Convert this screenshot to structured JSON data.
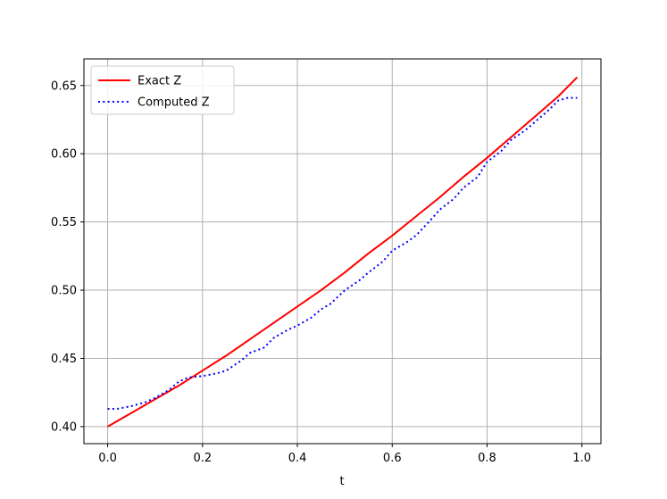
{
  "chart_data": {
    "type": "line",
    "title": "",
    "xlabel": "t",
    "ylabel": "",
    "xlim": [
      -0.05,
      1.04
    ],
    "ylim": [
      0.3875,
      0.6695
    ],
    "xticks": [
      "0.0",
      "0.2",
      "0.4",
      "0.6",
      "0.8",
      "1.0"
    ],
    "yticks": [
      "0.40",
      "0.45",
      "0.50",
      "0.55",
      "0.60",
      "0.65"
    ],
    "grid": true,
    "legend": "upper-left",
    "series": [
      {
        "name": "Exact Z",
        "color": "#ff0000",
        "style": "solid",
        "x": [
          0.0,
          0.05,
          0.1,
          0.15,
          0.2,
          0.25,
          0.3,
          0.35,
          0.4,
          0.45,
          0.5,
          0.55,
          0.6,
          0.65,
          0.7,
          0.75,
          0.8,
          0.85,
          0.9,
          0.95,
          0.99
        ],
        "y": [
          0.4,
          0.41,
          0.42,
          0.43,
          0.441,
          0.452,
          0.464,
          0.476,
          0.488,
          0.5,
          0.513,
          0.527,
          0.54,
          0.554,
          0.568,
          0.583,
          0.597,
          0.612,
          0.627,
          0.642,
          0.656
        ]
      },
      {
        "name": "Computed Z",
        "color": "#0000ff",
        "style": "dotted",
        "x": [
          0.0,
          0.02,
          0.05,
          0.08,
          0.1,
          0.13,
          0.15,
          0.17,
          0.2,
          0.23,
          0.25,
          0.28,
          0.3,
          0.33,
          0.35,
          0.38,
          0.4,
          0.43,
          0.45,
          0.47,
          0.5,
          0.53,
          0.55,
          0.58,
          0.6,
          0.63,
          0.65,
          0.68,
          0.7,
          0.73,
          0.75,
          0.78,
          0.8,
          0.83,
          0.85,
          0.88,
          0.9,
          0.93,
          0.95,
          0.97,
          0.99
        ],
        "y": [
          0.413,
          0.413,
          0.415,
          0.418,
          0.421,
          0.427,
          0.433,
          0.436,
          0.437,
          0.439,
          0.441,
          0.448,
          0.454,
          0.458,
          0.465,
          0.471,
          0.474,
          0.48,
          0.486,
          0.49,
          0.5,
          0.507,
          0.513,
          0.521,
          0.529,
          0.535,
          0.54,
          0.551,
          0.559,
          0.567,
          0.575,
          0.583,
          0.594,
          0.602,
          0.61,
          0.617,
          0.623,
          0.632,
          0.639,
          0.641,
          0.641
        ]
      }
    ]
  }
}
